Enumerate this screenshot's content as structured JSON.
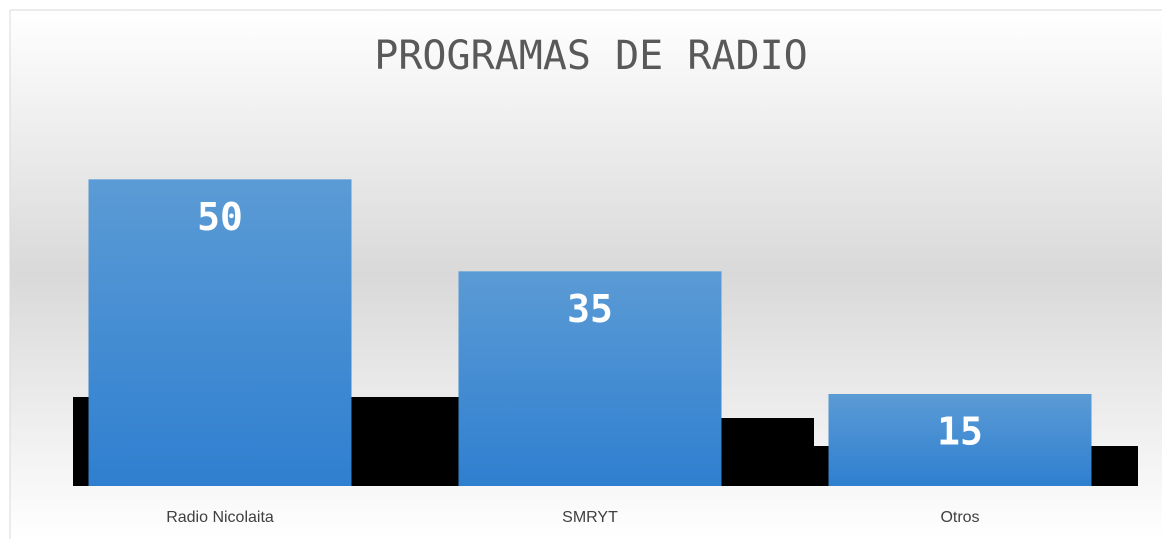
{
  "chart_data": {
    "type": "bar",
    "title": "PROGRAMAS DE RADIO",
    "categories": [
      "Radio Nicolaita",
      "SMRYT",
      "Otros"
    ],
    "values": [
      50,
      35,
      15
    ],
    "color": "#4a90d9",
    "ylim": [
      0,
      60
    ]
  }
}
